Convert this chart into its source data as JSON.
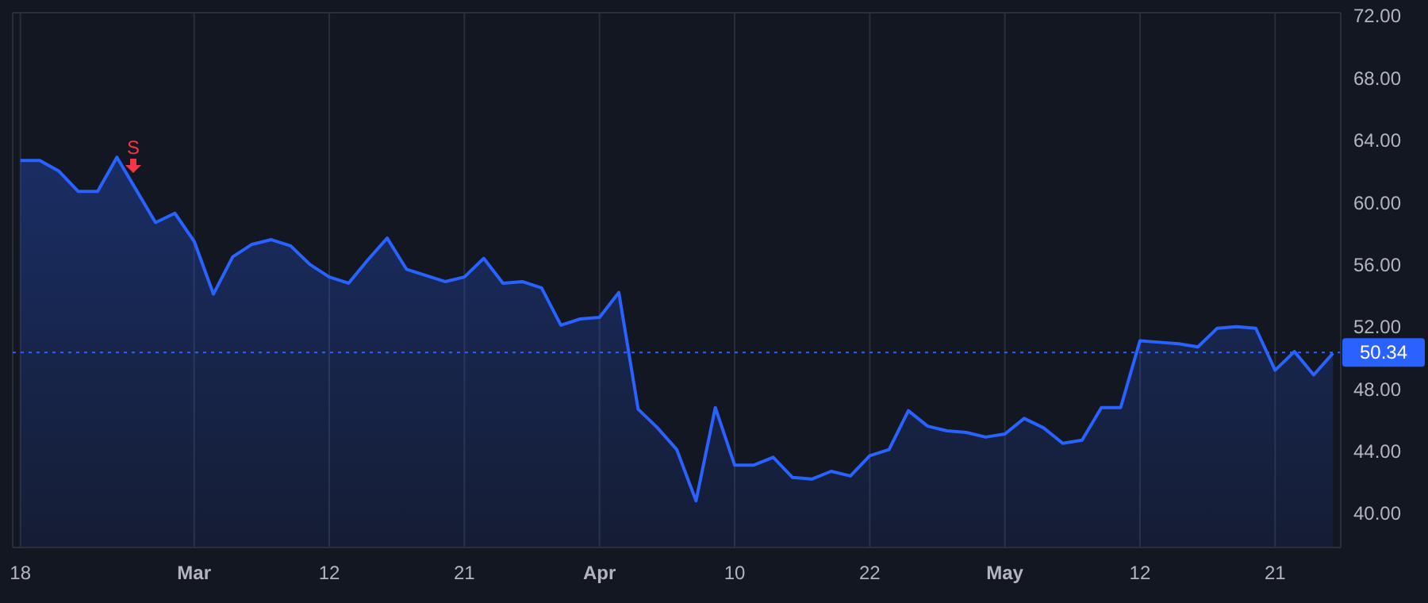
{
  "chart_data": {
    "type": "area",
    "categories": [
      "18",
      null,
      null,
      null,
      null,
      null,
      null,
      null,
      null,
      "Mar",
      null,
      null,
      null,
      null,
      null,
      null,
      "12",
      null,
      null,
      null,
      null,
      null,
      null,
      "21",
      null,
      null,
      null,
      null,
      null,
      null,
      "Apr",
      null,
      null,
      null,
      null,
      null,
      null,
      "10",
      null,
      null,
      null,
      null,
      null,
      null,
      "22",
      null,
      null,
      null,
      null,
      null,
      null,
      "May",
      null,
      null,
      null,
      null,
      null,
      null,
      "12",
      null,
      null,
      null,
      null,
      null,
      null,
      "21",
      null,
      null,
      null
    ],
    "series": [
      {
        "color": "#2962ff",
        "values": [
          62.7,
          62.7,
          62.0,
          60.7,
          60.7,
          62.9,
          60.8,
          58.7,
          59.3,
          57.5,
          54.1,
          56.5,
          57.3,
          57.6,
          57.2,
          56.0,
          55.2,
          54.8,
          56.3,
          57.7,
          55.7,
          55.3,
          54.9,
          55.2,
          56.4,
          54.8,
          54.9,
          54.5,
          52.1,
          52.5,
          52.6,
          54.2,
          46.7,
          45.5,
          44.1,
          40.8,
          46.8,
          43.1,
          43.1,
          43.6,
          42.3,
          42.2,
          42.7,
          42.4,
          43.7,
          44.1,
          46.6,
          45.6,
          45.3,
          45.2,
          44.9,
          45.1,
          46.1,
          45.5,
          44.5,
          44.7,
          46.8,
          46.8,
          51.1,
          51.0,
          50.9,
          50.7,
          51.9,
          52.0,
          51.9,
          49.2,
          50.4,
          48.9,
          50.3
        ]
      }
    ],
    "ylim": [
      37.8,
      72.2
    ],
    "yticks": [
      {
        "value": 40,
        "label": "40.00"
      },
      {
        "value": 44,
        "label": "44.00"
      },
      {
        "value": 48,
        "label": "48.00"
      },
      {
        "value": 52,
        "label": "52.00"
      },
      {
        "value": 56,
        "label": "56.00"
      },
      {
        "value": 60,
        "label": "60.00"
      },
      {
        "value": 64,
        "label": "64.00"
      },
      {
        "value": 68,
        "label": "68.00"
      },
      {
        "value": 72,
        "label": "72.00"
      }
    ],
    "ref_lines": [
      {
        "axis": "y",
        "value": 50.34,
        "label": "50.34",
        "color": "#2962ff",
        "line_style": "dotted"
      }
    ],
    "annotations": [
      "S"
    ],
    "grid": true,
    "marker": "none",
    "line_style": "solid"
  }
}
